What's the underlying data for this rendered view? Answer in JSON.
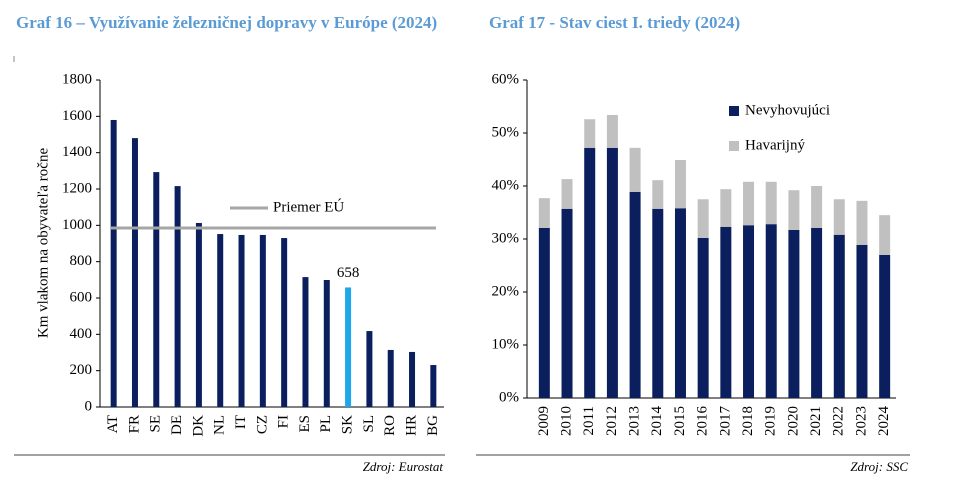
{
  "chart_data": [
    {
      "type": "bar",
      "title": "Graf 16 – Využívanie železničnej dopravy v Európe (2024)",
      "ylabel": "Km vlakom na obyvateľa ročne",
      "categories": [
        "AT",
        "FR",
        "SE",
        "DE",
        "DK",
        "NL",
        "IT",
        "CZ",
        "FI",
        "ES",
        "PL",
        "SK",
        "SL",
        "RO",
        "HR",
        "BG"
      ],
      "values": [
        1580,
        1480,
        1293,
        1216,
        1013,
        952,
        947,
        947,
        930,
        715,
        699,
        658,
        418,
        314,
        303,
        231
      ],
      "colors": [
        "#0b1f5e",
        "#0b1f5e",
        "#0b1f5e",
        "#0b1f5e",
        "#0b1f5e",
        "#0b1f5e",
        "#0b1f5e",
        "#0b1f5e",
        "#0b1f5e",
        "#0b1f5e",
        "#0b1f5e",
        "#1ea5ea",
        "#0b1f5e",
        "#0b1f5e",
        "#0b1f5e",
        "#0b1f5e"
      ],
      "data_label_index": 11,
      "reference_line": {
        "name": "Priemer EÚ",
        "value": 985,
        "color": "#a6a6a6"
      },
      "ylim": [
        0,
        1800
      ],
      "yticks": [
        0,
        200,
        400,
        600,
        800,
        1000,
        1200,
        1400,
        1600,
        1800
      ],
      "source": "Zdroj: Eurostat"
    },
    {
      "type": "stacked_bar",
      "title": "Graf 17 - Stav ciest I. triedy (2024)",
      "categories": [
        "2009",
        "2010",
        "2011",
        "2012",
        "2013",
        "2014",
        "2015",
        "2016",
        "2017",
        "2018",
        "2019",
        "2020",
        "2021",
        "2022",
        "2023",
        "2024"
      ],
      "series": [
        {
          "name": "Nevyhovujúci",
          "color": "#0b1f5e",
          "values": [
            32.1,
            35.7,
            47.2,
            47.2,
            38.9,
            35.7,
            35.8,
            30.2,
            32.3,
            32.6,
            32.8,
            31.7,
            32.1,
            30.8,
            28.9,
            27.0
          ]
        },
        {
          "name": "Havarijný",
          "color": "#c0c0c0",
          "values": [
            5.6,
            5.6,
            5.4,
            6.2,
            8.3,
            5.4,
            9.1,
            7.3,
            7.1,
            8.2,
            8.0,
            7.5,
            7.9,
            6.7,
            8.3,
            7.5
          ]
        }
      ],
      "ylim": [
        0,
        60
      ],
      "yticks": [
        {
          "value": 0,
          "label": "0%"
        },
        {
          "value": 10,
          "label": "10%"
        },
        {
          "value": 20,
          "label": "20%"
        },
        {
          "value": 30,
          "label": "30%"
        },
        {
          "value": 40,
          "label": "40%"
        },
        {
          "value": 50,
          "label": "50%"
        },
        {
          "value": 60,
          "label": "60%"
        }
      ],
      "source": "Zdroj: SSC"
    }
  ]
}
